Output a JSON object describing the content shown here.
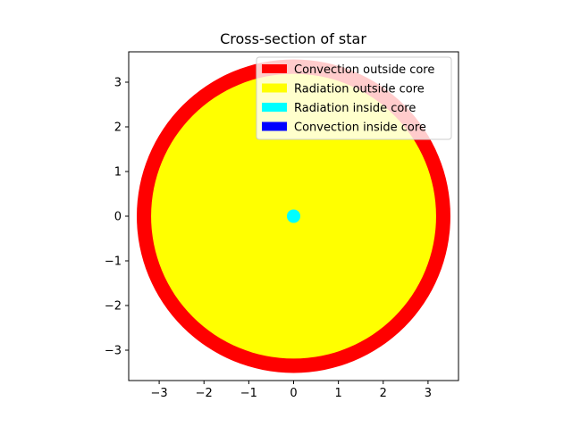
{
  "chart_data": {
    "type": "pie",
    "title": "Cross-section of star",
    "xlabel": "",
    "ylabel": "",
    "xlim": [
      -3.68,
      3.68
    ],
    "ylim": [
      -3.68,
      3.68
    ],
    "xticks": [
      -3,
      -2,
      -1,
      0,
      1,
      2,
      3
    ],
    "yticks": [
      -3,
      -2,
      -1,
      0,
      1,
      2,
      3
    ],
    "xtick_labels": [
      "−3",
      "−2",
      "−1",
      "0",
      "1",
      "2",
      "3"
    ],
    "ytick_labels": [
      "−3",
      "−2",
      "−1",
      "0",
      "1",
      "2",
      "3"
    ],
    "grid": false,
    "legend_position": "top-right",
    "regions": [
      {
        "name": "Convection outside core",
        "outer_radius": 3.5,
        "color": "#ff0000"
      },
      {
        "name": "Radiation outside core",
        "outer_radius": 3.18,
        "color": "#ffff00"
      },
      {
        "name": "Radiation inside core",
        "outer_radius": 0.15,
        "color": "#00ffff"
      },
      {
        "name": "Convection inside core",
        "outer_radius": 0,
        "color": "#0000ff"
      }
    ]
  }
}
